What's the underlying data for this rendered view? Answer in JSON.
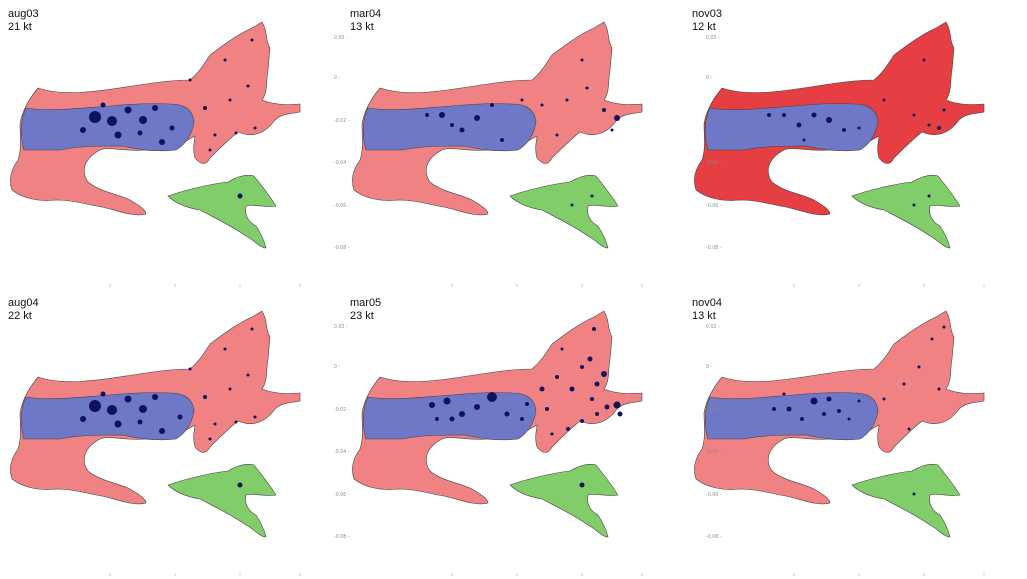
{
  "colors": {
    "deep_zone": "#6f78c6",
    "shallow_zone": "#f08283",
    "shallow_zone_dark": "#e63f43",
    "side_basin": "#80cd6a",
    "station": "#101060",
    "border": "#444444"
  },
  "panels": [
    {
      "name": "aug03",
      "value": "21",
      "unit": "kt",
      "shallow_color": "#f08283",
      "stations": [
        [
          95,
          117,
          6
        ],
        [
          112,
          121,
          5
        ],
        [
          128,
          110,
          3.5
        ],
        [
          143,
          120,
          4
        ],
        [
          155,
          108,
          3
        ],
        [
          118,
          135,
          3.5
        ],
        [
          162,
          142,
          3
        ],
        [
          172,
          128,
          2.5
        ],
        [
          205,
          108,
          2
        ],
        [
          230,
          100,
          1.5
        ],
        [
          248,
          86,
          1.5
        ],
        [
          255,
          128,
          1.5
        ],
        [
          236,
          133,
          1.5
        ],
        [
          240,
          196,
          2.5
        ],
        [
          210,
          150,
          1.5
        ],
        [
          225,
          60,
          1.5
        ],
        [
          252,
          40,
          1.5
        ],
        [
          83,
          130,
          3
        ],
        [
          103,
          105,
          2.5
        ],
        [
          140,
          133,
          2.5
        ],
        [
          190,
          80,
          1.5
        ],
        [
          215,
          135,
          1.5
        ]
      ]
    },
    {
      "name": "mar04",
      "value": "13",
      "unit": "kt",
      "shallow_color": "#f08283",
      "stations": [
        [
          85,
          115,
          2
        ],
        [
          100,
          115,
          3
        ],
        [
          120,
          130,
          2.5
        ],
        [
          135,
          118,
          3
        ],
        [
          150,
          105,
          2
        ],
        [
          160,
          140,
          2
        ],
        [
          200,
          105,
          1.5
        ],
        [
          225,
          100,
          1.5
        ],
        [
          245,
          88,
          1.5
        ],
        [
          262,
          110,
          2
        ],
        [
          275,
          118,
          3
        ],
        [
          270,
          130,
          1.5
        ],
        [
          215,
          135,
          1.5
        ],
        [
          230,
          205,
          1.5
        ],
        [
          250,
          196,
          1.5
        ],
        [
          240,
          60,
          1.5
        ],
        [
          110,
          125,
          2
        ],
        [
          180,
          100,
          1.5
        ]
      ]
    },
    {
      "name": "nov03",
      "value": "12",
      "unit": "kt",
      "shallow_color": "#e63f43",
      "stations": [
        [
          85,
          115,
          2
        ],
        [
          100,
          115,
          2
        ],
        [
          115,
          125,
          2.5
        ],
        [
          130,
          115,
          2.5
        ],
        [
          145,
          120,
          3
        ],
        [
          160,
          130,
          2
        ],
        [
          175,
          128,
          1.5
        ],
        [
          230,
          115,
          1.5
        ],
        [
          245,
          125,
          1.5
        ],
        [
          255,
          128,
          2
        ],
        [
          260,
          110,
          1.5
        ],
        [
          230,
          205,
          1.5
        ],
        [
          245,
          196,
          1.5
        ],
        [
          240,
          60,
          1.5
        ],
        [
          120,
          140,
          1.5
        ],
        [
          200,
          100,
          1.5
        ]
      ]
    },
    {
      "name": "aug04",
      "value": "22",
      "unit": "kt",
      "shallow_color": "#f08283",
      "stations": [
        [
          95,
          117,
          6
        ],
        [
          112,
          121,
          5
        ],
        [
          128,
          110,
          3.5
        ],
        [
          143,
          120,
          4
        ],
        [
          155,
          108,
          3
        ],
        [
          118,
          135,
          3.5
        ],
        [
          162,
          142,
          3
        ],
        [
          180,
          128,
          2.5
        ],
        [
          205,
          108,
          2
        ],
        [
          230,
          100,
          1.5
        ],
        [
          248,
          86,
          1.5
        ],
        [
          255,
          128,
          1.5
        ],
        [
          236,
          133,
          1.5
        ],
        [
          240,
          196,
          2.5
        ],
        [
          210,
          150,
          1.5
        ],
        [
          225,
          60,
          1.5
        ],
        [
          252,
          40,
          1.5
        ],
        [
          83,
          130,
          3
        ],
        [
          103,
          105,
          2.5
        ],
        [
          140,
          133,
          2.5
        ],
        [
          190,
          80,
          1.5
        ],
        [
          215,
          135,
          1.5
        ]
      ]
    },
    {
      "name": "mar05",
      "value": "23",
      "unit": "kt",
      "shallow_color": "#f08283",
      "stations": [
        [
          90,
          116,
          3
        ],
        [
          105,
          112,
          3.5
        ],
        [
          120,
          125,
          3
        ],
        [
          135,
          118,
          3
        ],
        [
          150,
          108,
          5
        ],
        [
          165,
          125,
          2.5
        ],
        [
          180,
          130,
          2
        ],
        [
          200,
          100,
          2.5
        ],
        [
          215,
          88,
          2
        ],
        [
          230,
          100,
          2.5
        ],
        [
          240,
          78,
          2
        ],
        [
          248,
          70,
          2.5
        ],
        [
          255,
          95,
          2.5
        ],
        [
          262,
          85,
          3
        ],
        [
          250,
          110,
          2
        ],
        [
          265,
          118,
          2.5
        ],
        [
          275,
          116,
          3.5
        ],
        [
          278,
          125,
          2.5
        ],
        [
          240,
          132,
          2
        ],
        [
          226,
          140,
          2
        ],
        [
          205,
          120,
          2
        ],
        [
          210,
          145,
          1.5
        ],
        [
          240,
          196,
          2.5
        ],
        [
          252,
          40,
          2
        ],
        [
          220,
          60,
          1.5
        ],
        [
          110,
          130,
          2.5
        ],
        [
          95,
          130,
          2
        ],
        [
          185,
          115,
          2
        ],
        [
          255,
          125,
          2
        ]
      ]
    },
    {
      "name": "nov04",
      "value": "13",
      "unit": "kt",
      "shallow_color": "#f08283",
      "stations": [
        [
          90,
          120,
          2
        ],
        [
          105,
          120,
          2.5
        ],
        [
          118,
          130,
          2
        ],
        [
          130,
          112,
          3.5
        ],
        [
          145,
          110,
          2.5
        ],
        [
          155,
          122,
          2
        ],
        [
          165,
          130,
          1.5
        ],
        [
          200,
          110,
          1.5
        ],
        [
          220,
          95,
          1.5
        ],
        [
          235,
          78,
          1.5
        ],
        [
          248,
          50,
          1.5
        ],
        [
          255,
          100,
          1.5
        ],
        [
          260,
          38,
          1.5
        ],
        [
          230,
          205,
          1.5
        ],
        [
          225,
          140,
          1.5
        ],
        [
          100,
          105,
          1.5
        ],
        [
          175,
          112,
          1.5
        ],
        [
          140,
          125,
          2
        ]
      ]
    }
  ],
  "y_tick_labels": [
    "0.02",
    "0",
    "-0.02",
    "-0.04",
    "-0.06",
    "-0.08"
  ]
}
